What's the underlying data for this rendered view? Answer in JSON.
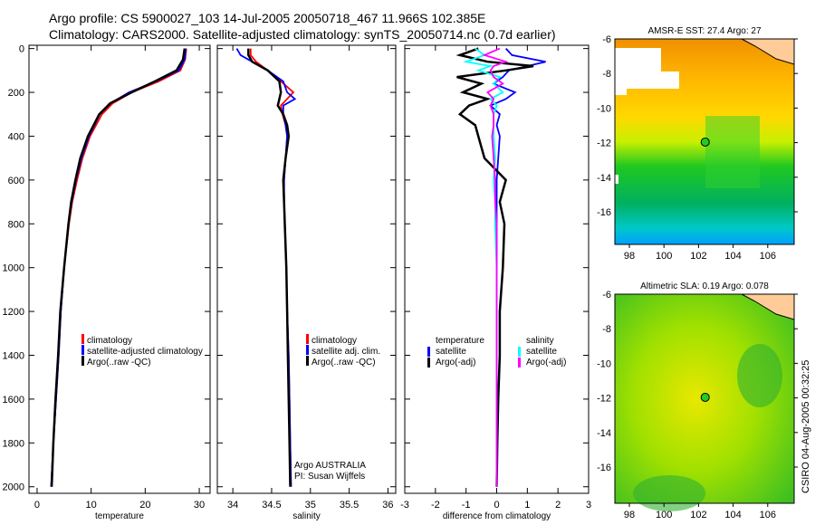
{
  "header": {
    "line1": "Argo profile: CS 5900027_103 14-Jul-2005 20050718_467 11.966S 102.385E",
    "line2": "Climatology: CARS2000. Satellite-adjusted climatology: synTS_20050714.nc (0.7d earlier)"
  },
  "side_label": "CSIRO 04-Aug-2005 00:32:25",
  "colors": {
    "climatology": "#ff0000",
    "satellite": "#0000ff",
    "argo": "#000000",
    "sal_satellite": "#00ffff",
    "sal_argo": "#ff00ff"
  },
  "chart_data": [
    {
      "type": "line",
      "id": "temperature",
      "xlabel": "temperature",
      "ylabel": "",
      "xlim": [
        -1.5,
        32
      ],
      "ylim": [
        2030,
        -15
      ],
      "xticks": [
        0,
        10,
        20,
        30
      ],
      "yticks": [
        0,
        200,
        400,
        600,
        800,
        1000,
        1200,
        1400,
        1600,
        1800,
        2000
      ],
      "legend": {
        "placement": "lower-right",
        "entries": [
          "climatology",
          "satellite-adjusted climatology",
          "Argo(..raw -QC)"
        ]
      },
      "depth": [
        0,
        50,
        100,
        150,
        200,
        250,
        300,
        400,
        500,
        600,
        700,
        800,
        1000,
        1200,
        1400,
        1600,
        1800,
        2000
      ],
      "series": [
        {
          "name": "climatology",
          "color": "#ff0000",
          "values": [
            27.6,
            27.4,
            26.5,
            22.5,
            17.5,
            14.0,
            12.0,
            9.8,
            8.4,
            7.4,
            6.5,
            5.9,
            5.0,
            4.4,
            4.0,
            3.5,
            3.0,
            2.6
          ]
        },
        {
          "name": "satellite-adjusted climatology",
          "color": "#0000ff",
          "values": [
            27.5,
            27.3,
            26.2,
            22.0,
            17.0,
            13.6,
            11.6,
            9.6,
            8.2,
            7.2,
            6.4,
            5.8,
            5.0,
            4.4,
            4.0,
            3.5,
            3.0,
            2.6
          ]
        },
        {
          "name": "Argo(..raw -QC)",
          "color": "#000000",
          "values": [
            27.3,
            27.0,
            25.8,
            21.8,
            17.5,
            13.5,
            11.5,
            9.4,
            8.0,
            7.1,
            6.3,
            5.8,
            5.0,
            4.3,
            3.9,
            3.4,
            3.0,
            2.7
          ]
        }
      ]
    },
    {
      "type": "line",
      "id": "salinity",
      "xlabel": "salinity",
      "xlim": [
        33.8,
        36.1
      ],
      "ylim": [
        2030,
        -15
      ],
      "xticks": [
        34,
        34.5,
        35,
        35.5,
        36
      ],
      "legend": {
        "placement": "lower-right",
        "entries": [
          "climatology",
          "satellite adj. clim.",
          "Argo(..raw -QC)"
        ]
      },
      "annotation": [
        "Argo AUSTRALIA",
        "PI: Susan Wijffels"
      ],
      "depth": [
        0,
        30,
        60,
        100,
        150,
        200,
        230,
        260,
        300,
        350,
        400,
        500,
        600,
        700,
        800,
        1000,
        1200,
        1400,
        1600,
        1800,
        2000
      ],
      "series": [
        {
          "name": "climatology",
          "color": "#ff0000",
          "values": [
            34.23,
            34.23,
            34.3,
            34.45,
            34.62,
            34.78,
            34.7,
            34.62,
            34.64,
            34.68,
            34.7,
            34.68,
            34.66,
            34.66,
            34.67,
            34.69,
            34.7,
            34.72,
            34.73,
            34.74,
            34.75
          ]
        },
        {
          "name": "satellite adj. clim.",
          "color": "#0000ff",
          "values": [
            34.05,
            34.1,
            34.25,
            34.45,
            34.65,
            34.7,
            34.8,
            34.65,
            34.65,
            34.68,
            34.7,
            34.68,
            34.66,
            34.66,
            34.67,
            34.69,
            34.7,
            34.72,
            34.73,
            34.74,
            34.75
          ]
        },
        {
          "name": "Argo(..raw -QC)",
          "color": "#000000",
          "values": [
            34.2,
            34.2,
            34.25,
            34.45,
            34.6,
            34.62,
            34.6,
            34.58,
            34.65,
            34.7,
            34.72,
            34.68,
            34.65,
            34.66,
            34.67,
            34.69,
            34.7,
            34.71,
            34.72,
            34.73,
            34.74
          ]
        }
      ]
    },
    {
      "type": "line",
      "id": "difference",
      "xlabel": "difference from climatology",
      "xlim": [
        -3,
        3
      ],
      "ylim": [
        2030,
        -15
      ],
      "xticks": [
        -3,
        -2,
        -1,
        0,
        1,
        2,
        3
      ],
      "legend": {
        "placement": "lower-center",
        "entries": [
          "temperature",
          "satellite",
          "Argo(-adj)",
          "salinity",
          "satellite",
          "Argo(-adj)"
        ]
      },
      "depth": [
        0,
        30,
        60,
        80,
        100,
        130,
        160,
        200,
        230,
        260,
        300,
        350,
        400,
        500,
        600,
        700,
        800,
        1000,
        1200,
        1400,
        1600,
        1800,
        2000
      ],
      "series": [
        {
          "name": "temperature satellite",
          "color": "#0000ff",
          "values": [
            0.3,
            0.5,
            1.6,
            1.0,
            0.4,
            0.2,
            -0.1,
            0.6,
            0.3,
            -0.2,
            0.1,
            0,
            0.1,
            0.05,
            0,
            0,
            0,
            0,
            0,
            0,
            0,
            0,
            0
          ]
        },
        {
          "name": "temperature Argo(-adj)",
          "color": "#000000",
          "values": [
            -0.6,
            -1.2,
            -0.3,
            1.2,
            0.3,
            -1.3,
            -0.5,
            -1.1,
            -0.3,
            -0.9,
            -1.2,
            -0.7,
            -0.6,
            -0.4,
            0.3,
            0.1,
            0.25,
            0.2,
            0.1,
            0.1,
            0.05,
            0.02,
            0
          ]
        },
        {
          "name": "salinity satellite",
          "color": "#00ffff",
          "values": [
            -0.7,
            -0.4,
            -1.0,
            -0.2,
            -0.6,
            0.1,
            -0.1,
            0.2,
            -0.2,
            0,
            -0.1,
            -0.1,
            -0.1,
            -0.05,
            -0.1,
            -0.05,
            -0.05,
            0,
            0,
            0,
            0,
            0,
            0
          ]
        },
        {
          "name": "salinity Argo(-adj)",
          "color": "#ff00ff",
          "values": [
            0.1,
            -0.4,
            0.3,
            -0.1,
            -0.2,
            -0.1,
            0.2,
            -0.3,
            -0.1,
            -0.2,
            -0.1,
            -0.1,
            -0.15,
            -0.1,
            -0.05,
            -0.05,
            0,
            0,
            0,
            0,
            0,
            0,
            0
          ]
        }
      ]
    },
    {
      "type": "heatmap",
      "id": "sst-map",
      "title": "AMSR-E SST: 27.4 Argo: 27",
      "xlim": [
        97.2,
        107.6
      ],
      "ylim": [
        -17.9,
        -6
      ],
      "xticks": [
        98,
        100,
        102,
        104,
        106
      ],
      "yticks": [
        -6,
        -8,
        -10,
        -12,
        -14,
        -16
      ],
      "argo_position": [
        102.385,
        -11.966
      ]
    },
    {
      "type": "heatmap",
      "id": "sla-map",
      "title": "Altimetric SLA: 0.19 Argo: 0.078",
      "xlim": [
        97.2,
        107.6
      ],
      "ylim": [
        -17.9,
        -6
      ],
      "xticks": [
        98,
        100,
        102,
        104,
        106
      ],
      "yticks": [
        -6,
        -8,
        -10,
        -12,
        -14,
        -16
      ],
      "argo_position": [
        102.385,
        -11.966
      ]
    }
  ]
}
